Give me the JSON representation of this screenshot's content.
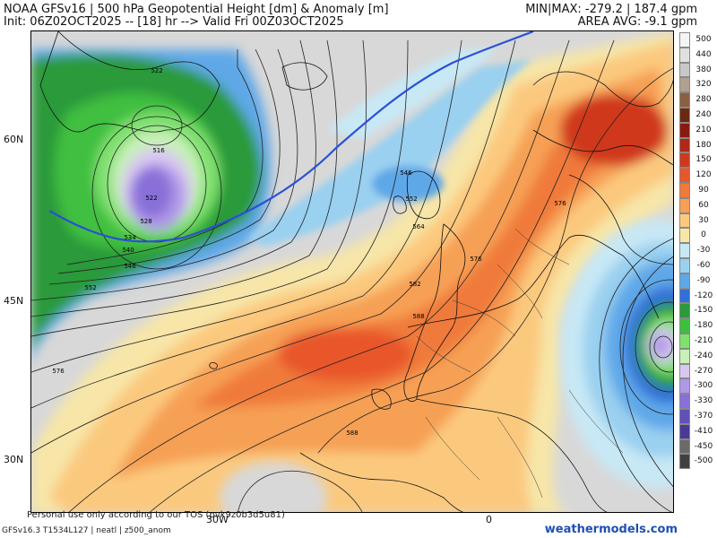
{
  "header": {
    "line1": "NOAA GFSv16 | 500 hPa Geopotential Height [dm] & Anomaly [m]",
    "line2": "Init: 06Z02OCT2025 -- [18] hr --> Valid Fri 00Z03OCT2025",
    "minmax": "MIN|MAX: -279.2 | 187.4 gpm",
    "area_avg": "AREA AVG: -9.1 gpm"
  },
  "axes": {
    "lat_labels": [
      "60N",
      "45N",
      "30N"
    ],
    "lon_labels": [
      "30W",
      "0"
    ]
  },
  "colorbar": {
    "labels": [
      "500",
      "440",
      "380",
      "320",
      "280",
      "240",
      "210",
      "180",
      "150",
      "120",
      "90",
      "60",
      "30",
      "0",
      "-30",
      "-60",
      "-90",
      "-120",
      "-150",
      "-180",
      "-210",
      "-240",
      "-270",
      "-300",
      "-330",
      "-370",
      "-410",
      "-450",
      "-500"
    ],
    "colors": [
      "#f5f5f5",
      "#e0e0e0",
      "#c8c8c8",
      "#b0a090",
      "#8a6040",
      "#6a2a10",
      "#8a1a10",
      "#b02818",
      "#d0381e",
      "#e8572a",
      "#f07a3a",
      "#f6a055",
      "#fbc97e",
      "#f7e6a8",
      "#c8e8f5",
      "#9ad0f0",
      "#5fa8e8",
      "#3070d8",
      "#2a9a3a",
      "#3fbf3f",
      "#80e070",
      "#c8f0b8",
      "#d8c8f0",
      "#b098e8",
      "#8870d8",
      "#6050b8",
      "#4a3a98",
      "#6a6a6a",
      "#404040"
    ]
  },
  "contour_labels": [
    "522",
    "516",
    "522",
    "528",
    "534",
    "540",
    "546",
    "552",
    "576",
    "546",
    "552",
    "564",
    "576",
    "576",
    "582",
    "588",
    "588"
  ],
  "footer": {
    "tos": "Personal use only according to our TOS (pvk9z0b3d5u81)",
    "model": "GFSv16.3 T1534L127 | neatl | z500_anom",
    "brand": "weathermodels.com"
  }
}
